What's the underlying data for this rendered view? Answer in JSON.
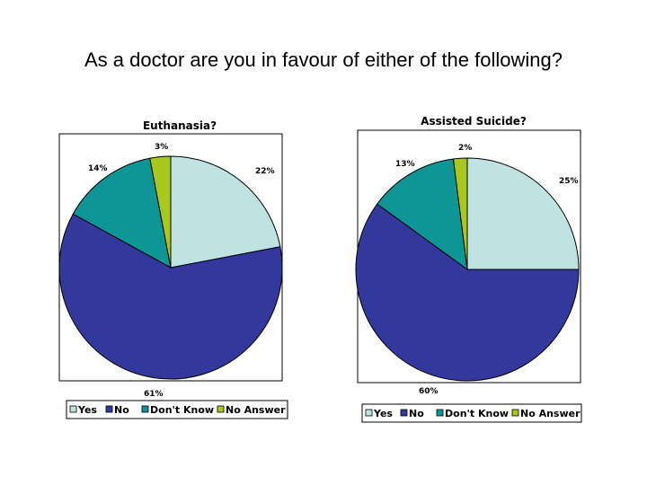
{
  "page": {
    "title": "As a doctor are you in favour of either of the following?"
  },
  "colors": {
    "Yes": "#bfe3e3",
    "No": "#33389c",
    "Don't Know": "#0e9595",
    "No Answer": "#a8c81e"
  },
  "chart_data": [
    {
      "type": "pie",
      "title": "Euthanasia?",
      "categories": [
        "Yes",
        "No",
        "Don't Know",
        "No Answer"
      ],
      "values": [
        22,
        61,
        14,
        3
      ],
      "labels": [
        "22%",
        "61%",
        "14%",
        "3%"
      ],
      "legend": "bottom"
    },
    {
      "type": "pie",
      "title": "Assisted Suicide?",
      "categories": [
        "Yes",
        "No",
        "Don't Know",
        "No Answer"
      ],
      "values": [
        25,
        60,
        13,
        2
      ],
      "labels": [
        "25%",
        "60%",
        "13%",
        "2%"
      ],
      "legend": "bottom"
    }
  ]
}
